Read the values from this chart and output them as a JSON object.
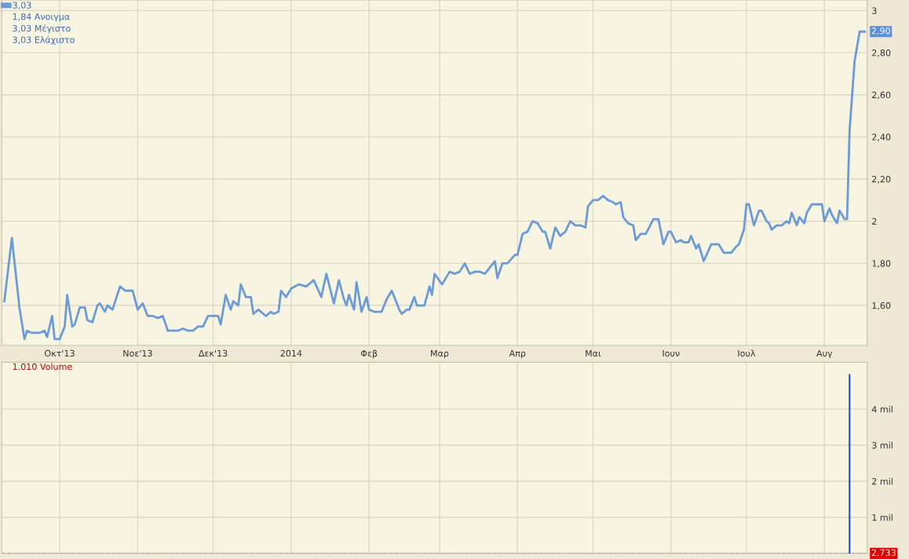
{
  "chart_data": [
    {
      "type": "line",
      "x": [
        "2013-09-09",
        "2013-09-12",
        "2013-09-15",
        "2013-09-17",
        "2013-09-18",
        "2013-09-20",
        "2013-09-23",
        "2013-09-25",
        "2013-09-26",
        "2013-09-28",
        "2013-09-29",
        "2013-10-01",
        "2013-10-03",
        "2013-10-04",
        "2013-10-06",
        "2013-10-07",
        "2013-10-09",
        "2013-10-11",
        "2013-10-12",
        "2013-10-14",
        "2013-10-16",
        "2013-10-17",
        "2013-10-19",
        "2013-10-20",
        "2013-10-22",
        "2013-10-25",
        "2013-10-27",
        "2013-10-30",
        "2013-11-01",
        "2013-11-03",
        "2013-11-05",
        "2013-11-07",
        "2013-11-09",
        "2013-11-11",
        "2013-11-13",
        "2013-11-17",
        "2013-11-19",
        "2013-11-21",
        "2013-11-23",
        "2013-11-25",
        "2013-11-27",
        "2013-11-29",
        "2013-12-03",
        "2013-12-04",
        "2013-12-06",
        "2013-12-08",
        "2013-12-09",
        "2013-12-11",
        "2013-12-12",
        "2013-12-14",
        "2013-12-16",
        "2013-12-17",
        "2013-12-19",
        "2013-12-22",
        "2013-12-24",
        "2013-12-25",
        "2013-12-27",
        "2013-12-28",
        "2013-12-30",
        "2014-01-01",
        "2014-01-04",
        "2014-01-07",
        "2014-01-10",
        "2014-01-13",
        "2014-01-15",
        "2014-01-18",
        "2014-01-20",
        "2014-01-22",
        "2014-01-23",
        "2014-01-24",
        "2014-01-26",
        "2014-01-27",
        "2014-01-29",
        "2014-01-31",
        "2014-02-01",
        "2014-02-03",
        "2014-02-06",
        "2014-02-08",
        "2014-02-10",
        "2014-02-12",
        "2014-02-13",
        "2014-02-14",
        "2014-02-16",
        "2014-02-17",
        "2014-02-19",
        "2014-02-20",
        "2014-02-23",
        "2014-02-25",
        "2014-02-26",
        "2014-02-27",
        "2014-03-02",
        "2014-03-05",
        "2014-03-07",
        "2014-03-09",
        "2014-03-11",
        "2014-03-13",
        "2014-03-15",
        "2014-03-17",
        "2014-03-19",
        "2014-03-23",
        "2014-03-24",
        "2014-03-26",
        "2014-03-28",
        "2014-03-31",
        "2014-04-01",
        "2014-04-03",
        "2014-04-05",
        "2014-04-07",
        "2014-04-09",
        "2014-04-11",
        "2014-04-12",
        "2014-04-14",
        "2014-04-16",
        "2014-04-18",
        "2014-04-20",
        "2014-04-22",
        "2014-04-24",
        "2014-04-26",
        "2014-04-28",
        "2014-04-29",
        "2014-05-01",
        "2014-05-03",
        "2014-05-05",
        "2014-05-07",
        "2014-05-09",
        "2014-05-10",
        "2014-05-12",
        "2014-05-13",
        "2014-05-15",
        "2014-05-17",
        "2014-05-18",
        "2014-05-20",
        "2014-05-22",
        "2014-05-25",
        "2014-05-27",
        "2014-05-29",
        "2014-05-31",
        "2014-06-01",
        "2014-06-03",
        "2014-06-05",
        "2014-06-06",
        "2014-06-08",
        "2014-06-09",
        "2014-06-11",
        "2014-06-12",
        "2014-06-14",
        "2014-06-17",
        "2014-06-20",
        "2014-06-22",
        "2014-06-25",
        "2014-06-27",
        "2014-06-28",
        "2014-06-30",
        "2014-07-01",
        "2014-07-02",
        "2014-07-04",
        "2014-07-06",
        "2014-07-07",
        "2014-07-09",
        "2014-07-10",
        "2014-07-11",
        "2014-07-13",
        "2014-07-14",
        "2014-07-15",
        "2014-07-17",
        "2014-07-18",
        "2014-07-19",
        "2014-07-21",
        "2014-07-22",
        "2014-07-24",
        "2014-07-25",
        "2014-07-27",
        "2014-07-31",
        "2014-08-01",
        "2014-08-03",
        "2014-08-04",
        "2014-08-06",
        "2014-08-07",
        "2014-08-09",
        "2014-08-10",
        "2014-08-11",
        "2014-08-13",
        "2014-08-15",
        "2014-08-17"
      ],
      "series": [
        {
          "name": "3,03",
          "color": "#6a9ad8",
          "values": [
            1.62,
            1.92,
            1.59,
            1.44,
            1.48,
            1.47,
            1.47,
            1.48,
            1.45,
            1.55,
            1.44,
            1.44,
            1.5,
            1.65,
            1.5,
            1.51,
            1.59,
            1.59,
            1.53,
            1.52,
            1.6,
            1.61,
            1.57,
            1.6,
            1.58,
            1.69,
            1.67,
            1.67,
            1.58,
            1.61,
            1.55,
            1.55,
            1.54,
            1.55,
            1.48,
            1.48,
            1.49,
            1.48,
            1.48,
            1.5,
            1.5,
            1.55,
            1.55,
            1.51,
            1.65,
            1.58,
            1.62,
            1.6,
            1.7,
            1.64,
            1.64,
            1.56,
            1.58,
            1.55,
            1.57,
            1.56,
            1.57,
            1.67,
            1.64,
            1.68,
            1.7,
            1.69,
            1.72,
            1.64,
            1.75,
            1.61,
            1.72,
            1.63,
            1.6,
            1.65,
            1.58,
            1.71,
            1.57,
            1.64,
            1.58,
            1.57,
            1.57,
            1.63,
            1.67,
            1.61,
            1.58,
            1.56,
            1.58,
            1.58,
            1.64,
            1.6,
            1.6,
            1.69,
            1.65,
            1.75,
            1.7,
            1.76,
            1.75,
            1.76,
            1.8,
            1.75,
            1.76,
            1.76,
            1.75,
            1.81,
            1.73,
            1.8,
            1.8,
            1.84,
            1.84,
            1.94,
            1.95,
            2.0,
            1.99,
            1.95,
            1.95,
            1.87,
            1.97,
            1.93,
            1.95,
            2.0,
            1.98,
            1.98,
            1.97,
            2.07,
            2.1,
            2.1,
            2.12,
            2.1,
            2.09,
            2.08,
            2.09,
            2.02,
            1.99,
            1.98,
            1.91,
            1.94,
            1.94,
            2.01,
            2.01,
            1.89,
            1.95,
            1.95,
            1.9,
            1.91,
            1.9,
            1.9,
            1.93,
            1.87,
            1.89,
            1.81,
            1.89,
            1.89,
            1.85,
            1.85,
            1.88,
            1.89,
            1.96,
            2.08,
            2.08,
            1.98,
            2.05,
            2.05,
            2.0,
            1.99,
            1.96,
            1.98,
            1.98,
            1.98,
            2.0,
            1.99,
            2.04,
            1.98,
            2.02,
            1.99,
            2.04,
            2.08,
            2.08,
            2.0,
            2.06,
            2.03,
            1.99,
            2.05,
            2.01,
            2.01,
            2.43,
            2.76,
            2.9,
            2.9
          ]
        }
      ],
      "xlim": [
        "2013-09-08",
        "2014-08-18"
      ],
      "xticks": [
        {
          "value": "2013-10-01",
          "label": "Οκτ'13"
        },
        {
          "value": "2013-11-01",
          "label": "Νοε'13"
        },
        {
          "value": "2013-12-01",
          "label": "Δεκ'13"
        },
        {
          "value": "2014-01-01",
          "label": "2014"
        },
        {
          "value": "2014-02-01",
          "label": "Φεβ"
        },
        {
          "value": "2014-03-01",
          "label": "Μαρ"
        },
        {
          "value": "2014-04-01",
          "label": "Απρ"
        },
        {
          "value": "2014-05-01",
          "label": "Μαι"
        },
        {
          "value": "2014-06-01",
          "label": "Ιουν"
        },
        {
          "value": "2014-07-01",
          "label": "Ιουλ"
        },
        {
          "value": "2014-08-01",
          "label": "Αυγ"
        }
      ],
      "ylim": [
        1.41,
        3.05
      ],
      "yticks": [
        {
          "value": 1.6,
          "label": "1,60"
        },
        {
          "value": 1.8,
          "label": "1,80"
        },
        2,
        {
          "value": 2.2,
          "label": "2,20"
        },
        {
          "value": 2.4,
          "label": "2,40"
        },
        {
          "value": 2.6,
          "label": "2,60"
        },
        {
          "value": 2.8,
          "label": "2,80"
        },
        3
      ],
      "grid": true,
      "legend": "top left",
      "marker": "none",
      "line_style": "solid",
      "annotations": [
        "1,84 Ανοιγμα",
        "3,03 Μέγιστο",
        "3,03 Ελάχιστο",
        {
          "text": "2,90",
          "x": "2014-08-17",
          "y": 2.9
        }
      ]
    },
    {
      "type": "bar",
      "x": [
        "2014-08-11"
      ],
      "series": [
        {
          "color": "#2a55d0",
          "values": [
            4.97
          ]
        }
      ],
      "xlim": [
        "2013-09-08",
        "2014-08-18"
      ],
      "xticks": [
        {
          "value": "2013-10-01",
          "label": null
        },
        {
          "value": "2013-11-01",
          "label": null
        },
        {
          "value": "2013-12-01",
          "label": null
        },
        {
          "value": "2014-01-01",
          "label": null
        },
        {
          "value": "2014-02-01",
          "label": null
        },
        {
          "value": "2014-03-01",
          "label": null
        },
        {
          "value": "2014-04-01",
          "label": null
        },
        {
          "value": "2014-05-01",
          "label": null
        },
        {
          "value": "2014-06-01",
          "label": null
        },
        {
          "value": "2014-07-01",
          "label": null
        },
        {
          "value": "2014-08-01",
          "label": null
        }
      ],
      "ylim": [
        0,
        5.3
      ],
      "yticks": [
        {
          "value": 1,
          "label": "1 mil"
        },
        {
          "value": 2,
          "label": "2 mil"
        },
        {
          "value": 3,
          "label": "3 mil"
        },
        {
          "value": 4,
          "label": "4 mil"
        }
      ],
      "tick_labels": "y",
      "grid": true,
      "ref_lines": [
        {
          "axis": "y",
          "value": 0,
          "color": "#3060c0",
          "line_style": "dashed"
        }
      ],
      "annotations": [
        "1.010 Volume",
        {
          "text": "2.733",
          "x": "2014-08-17",
          "y": 0
        }
      ]
    }
  ]
}
